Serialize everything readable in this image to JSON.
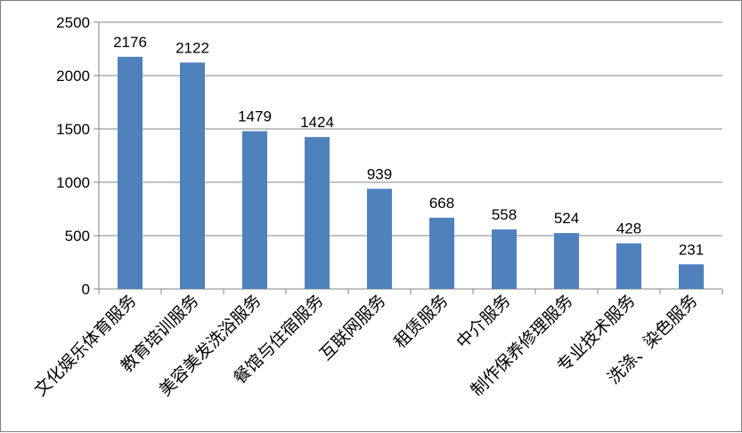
{
  "chart_data": {
    "type": "bar",
    "categories": [
      "文化娱乐体育服务",
      "教育培训服务",
      "美容美发洗浴服务",
      "餐馆与住宿服务",
      "互联网服务",
      "租赁服务",
      "中介服务",
      "制作保养修理服务",
      "专业技术服务",
      "洗涤、染色服务"
    ],
    "values": [
      2176,
      2122,
      1479,
      1424,
      939,
      668,
      558,
      524,
      428,
      231
    ],
    "data_labels": [
      "2176",
      "2122",
      "1479",
      "1424",
      "939",
      "668",
      "558",
      "524",
      "428",
      "231"
    ],
    "y_ticks": [
      "0",
      "500",
      "1000",
      "1500",
      "2000",
      "2500"
    ],
    "ylim": [
      0,
      2500
    ],
    "grid": true,
    "legend": "none",
    "bar_color": "#4f81bd",
    "grid_color": "#868686"
  }
}
